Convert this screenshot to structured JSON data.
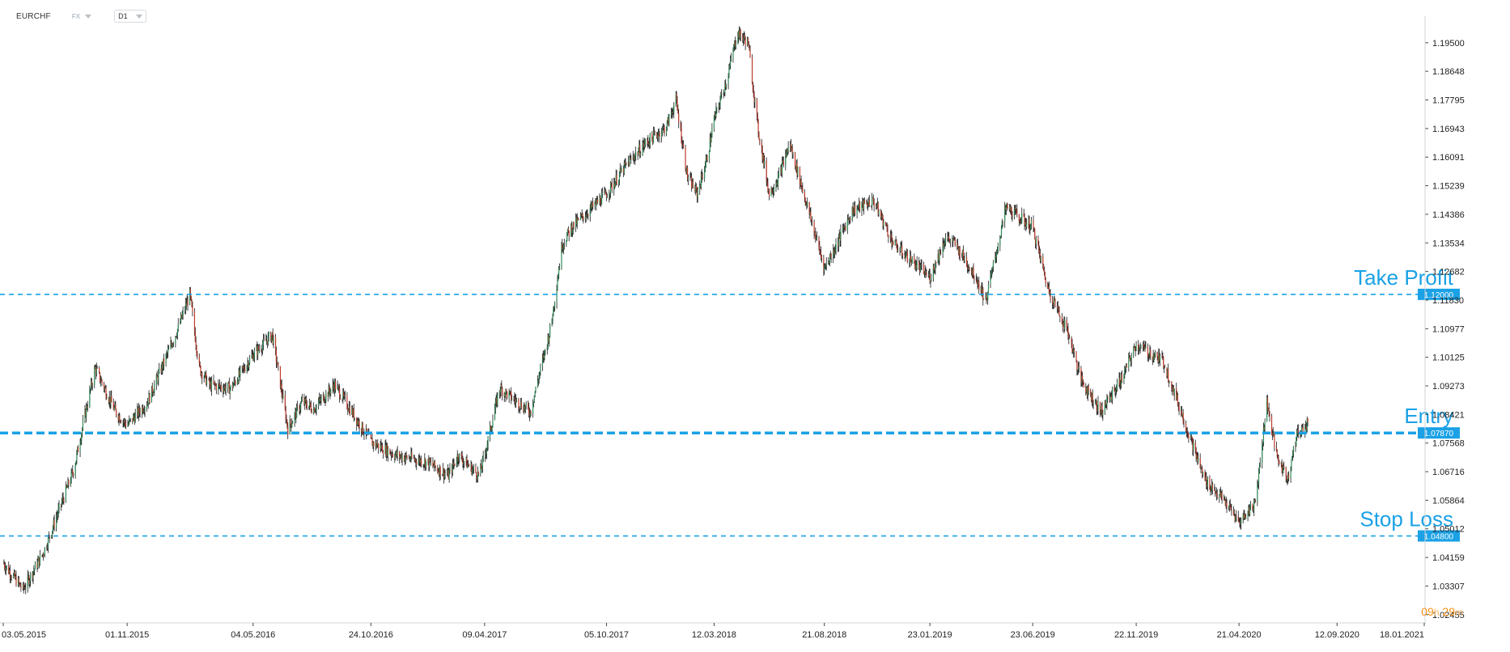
{
  "toolbar": {
    "symbol": "EURCHF",
    "market": "FX",
    "timeframe": "D1"
  },
  "timer": {
    "hours": "09",
    "h_unit": "h",
    "minutes": "29",
    "m_unit": "m"
  },
  "colors": {
    "line": "#1aa1e6",
    "label_bg": "#1aa1e6",
    "candle_up": "#2e8b57",
    "candle_down": "#c0392b",
    "wick": "#1a1a1a",
    "timer": "#f7931a"
  },
  "chart_data": {
    "type": "candlestick",
    "title": "",
    "xlabel": "",
    "ylabel": "",
    "ylim": [
      1.0245,
      1.2005
    ],
    "y_axis_side": "right",
    "grid": false,
    "y_ticks": [
      "1.19500",
      "1.18648",
      "1.17795",
      "1.16943",
      "1.16091",
      "1.15239",
      "1.14386",
      "1.13534",
      "1.12682",
      "1.11830",
      "1.10977",
      "1.10125",
      "1.09273",
      "1.08421",
      "1.07568",
      "1.06716",
      "1.05864",
      "1.05012",
      "1.04159",
      "1.03307",
      "1.02455"
    ],
    "x_ticks": [
      "03.05.2015",
      "01.11.2015",
      "04.05.2016",
      "24.10.2016",
      "09.04.2017",
      "05.10.2017",
      "12.03.2018",
      "21.08.2018",
      "23.01.2019",
      "23.06.2019",
      "22.11.2019",
      "21.04.2020",
      "12.09.2020",
      "18.01.2021"
    ],
    "x_range": [
      "03.05.2015",
      "18.01.2021"
    ],
    "price_path": [
      [
        "03.05.2015",
        1.04
      ],
      [
        "01.06.2015",
        1.032
      ],
      [
        "01.07.2015",
        1.043
      ],
      [
        "15.08.2015",
        1.068
      ],
      [
        "01.09.2015",
        1.085
      ],
      [
        "15.09.2015",
        1.098
      ],
      [
        "15.10.2015",
        1.085
      ],
      [
        "01.11.2015",
        1.081
      ],
      [
        "01.12.2015",
        1.088
      ],
      [
        "15.01.2016",
        1.11
      ],
      [
        "01.02.2016",
        1.12
      ],
      [
        "15.02.2016",
        1.098
      ],
      [
        "01.03.2016",
        1.093
      ],
      [
        "01.04.2016",
        1.092
      ],
      [
        "04.05.2016",
        1.102
      ],
      [
        "01.06.2016",
        1.108
      ],
      [
        "24.06.2016",
        1.08
      ],
      [
        "15.07.2016",
        1.088
      ],
      [
        "01.08.2016",
        1.086
      ],
      [
        "01.09.2016",
        1.093
      ],
      [
        "24.10.2016",
        1.076
      ],
      [
        "01.12.2016",
        1.072
      ],
      [
        "15.01.2017",
        1.07
      ],
      [
        "15.02.2017",
        1.066
      ],
      [
        "01.03.2017",
        1.072
      ],
      [
        "01.04.2017",
        1.066
      ],
      [
        "09.04.2017",
        1.072
      ],
      [
        "01.05.2017",
        1.092
      ],
      [
        "15.06.2017",
        1.085
      ],
      [
        "15.07.2017",
        1.11
      ],
      [
        "01.08.2017",
        1.135
      ],
      [
        "15.08.2017",
        1.14
      ],
      [
        "05.10.2017",
        1.15
      ],
      [
        "01.11.2017",
        1.158
      ],
      [
        "01.12.2017",
        1.165
      ],
      [
        "01.01.2018",
        1.17
      ],
      [
        "15.01.2018",
        1.178
      ],
      [
        "01.02.2018",
        1.155
      ],
      [
        "15.02.2018",
        1.15
      ],
      [
        "01.03.2018",
        1.16
      ],
      [
        "12.03.2018",
        1.172
      ],
      [
        "01.04.2018",
        1.185
      ],
      [
        "15.04.2018",
        1.198
      ],
      [
        "01.05.2018",
        1.195
      ],
      [
        "15.05.2018",
        1.17
      ],
      [
        "01.06.2018",
        1.15
      ],
      [
        "15.06.2018",
        1.155
      ],
      [
        "01.07.2018",
        1.165
      ],
      [
        "21.08.2018",
        1.128
      ],
      [
        "01.09.2018",
        1.132
      ],
      [
        "01.10.2018",
        1.145
      ],
      [
        "01.11.2018",
        1.148
      ],
      [
        "01.12.2018",
        1.135
      ],
      [
        "23.01.2019",
        1.125
      ],
      [
        "15.02.2019",
        1.137
      ],
      [
        "01.03.2019",
        1.135
      ],
      [
        "01.04.2019",
        1.125
      ],
      [
        "15.04.2019",
        1.118
      ],
      [
        "15.05.2019",
        1.146
      ],
      [
        "23.06.2019",
        1.14
      ],
      [
        "15.07.2019",
        1.122
      ],
      [
        "15.08.2019",
        1.108
      ],
      [
        "01.09.2019",
        1.095
      ],
      [
        "01.10.2019",
        1.085
      ],
      [
        "01.11.2019",
        1.095
      ],
      [
        "22.11.2019",
        1.105
      ],
      [
        "01.01.2020",
        1.1
      ],
      [
        "01.02.2020",
        1.082
      ],
      [
        "01.03.2020",
        1.065
      ],
      [
        "01.04.2020",
        1.058
      ],
      [
        "21.04.2020",
        1.052
      ],
      [
        "15.05.2020",
        1.058
      ],
      [
        "01.06.2020",
        1.088
      ],
      [
        "15.06.2020",
        1.072
      ],
      [
        "01.07.2020",
        1.065
      ],
      [
        "15.07.2020",
        1.078
      ],
      [
        "01.08.2020",
        1.082
      ]
    ],
    "levels": [
      {
        "name": "Take Profit",
        "value": 1.12,
        "value_label": "1.12000",
        "style": "dashed-thin"
      },
      {
        "name": "Entry",
        "value": 1.0787,
        "value_label": "1.07870",
        "style": "dashed-thick"
      },
      {
        "name": "Stop Loss",
        "value": 1.048,
        "value_label": "1.04800",
        "style": "dashed-thin"
      }
    ]
  }
}
